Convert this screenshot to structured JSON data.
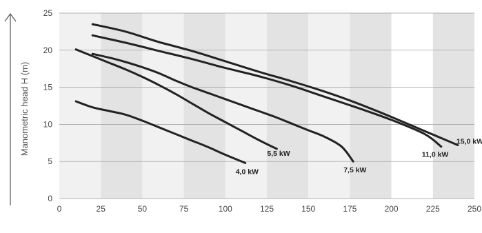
{
  "chart_data": {
    "type": "line",
    "title": "",
    "xlabel": "",
    "ylabel": "Manometric head H (m)",
    "xlim": [
      0,
      250
    ],
    "ylim": [
      0,
      25
    ],
    "x_ticks": [
      "0",
      "25",
      "50",
      "75",
      "100",
      "125",
      "150",
      "175",
      "200",
      "225",
      "250"
    ],
    "y_ticks": [
      "0",
      "5",
      "10",
      "15",
      "20",
      "25"
    ],
    "grid": "horizontal",
    "background_bands": "alternating shaded vertical bands",
    "colors": {
      "line": "#222222",
      "grid": "#9a9a9a",
      "band_light": "#f1f1f1",
      "band_dark": "#e3e3e3",
      "band_white": "#ffffff"
    },
    "series": [
      {
        "name": "4,0 kW",
        "x": [
          10,
          20,
          30,
          40,
          50,
          60,
          70,
          80,
          90,
          100,
          112
        ],
        "y": [
          13.1,
          12.3,
          11.8,
          11.3,
          10.5,
          9.6,
          8.7,
          7.8,
          6.9,
          5.9,
          4.8
        ]
      },
      {
        "name": "5,5 kW",
        "x": [
          10,
          20,
          30,
          40,
          50,
          60,
          70,
          80,
          90,
          100,
          110,
          120,
          131
        ],
        "y": [
          20.1,
          19.2,
          18.3,
          17.4,
          16.4,
          15.3,
          14.1,
          12.8,
          11.5,
          10.3,
          9.1,
          7.9,
          6.7
        ]
      },
      {
        "name": "7,5 kW",
        "x": [
          20,
          30,
          40,
          50,
          60,
          70,
          80,
          90,
          100,
          110,
          120,
          130,
          140,
          150,
          160,
          170,
          177
        ],
        "y": [
          19.5,
          19.0,
          18.4,
          17.7,
          16.9,
          15.9,
          15.0,
          14.2,
          13.4,
          12.6,
          11.8,
          11.0,
          10.1,
          9.2,
          8.3,
          7.0,
          5.0
        ]
      },
      {
        "name": "11,0 kW",
        "x": [
          20,
          40,
          60,
          80,
          100,
          120,
          140,
          160,
          180,
          200,
          220,
          230
        ],
        "y": [
          22.0,
          21.0,
          19.9,
          18.8,
          17.6,
          16.5,
          15.2,
          13.7,
          12.2,
          10.6,
          8.7,
          7.0
        ]
      },
      {
        "name": "15,0 kW",
        "x": [
          20,
          40,
          60,
          80,
          100,
          120,
          140,
          160,
          180,
          200,
          220,
          240
        ],
        "y": [
          23.5,
          22.5,
          21.1,
          19.9,
          18.5,
          17.1,
          15.8,
          14.4,
          12.8,
          11.0,
          9.1,
          7.2
        ]
      }
    ]
  }
}
